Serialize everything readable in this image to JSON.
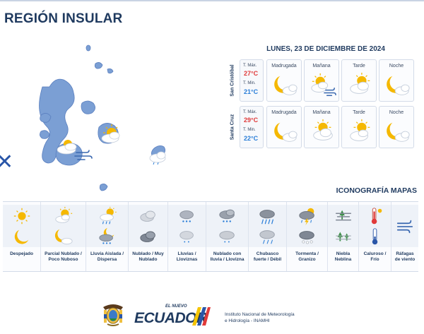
{
  "header": {
    "title": "REGIÓN INSULAR"
  },
  "forecast": {
    "date": "LUNES, 23 DE DICIEMBRE DE 2024",
    "temp_max_label": "T. Máx.",
    "temp_min_label": "T. Min.",
    "islands": [
      {
        "name": "San Cristóbal",
        "t_max": "27°C",
        "t_min": "21°C",
        "periods": [
          {
            "label": "Madrugada",
            "icon": "moon-cloud-icon"
          },
          {
            "label": "Mañana",
            "icon": "sun-cloud-wind-icon"
          },
          {
            "label": "Tarde",
            "icon": "sun-cloud-icon"
          },
          {
            "label": "Noche",
            "icon": "moon-cloud-icon"
          }
        ]
      },
      {
        "name": "Santa Cruz",
        "t_max": "29°C",
        "t_min": "22°C",
        "periods": [
          {
            "label": "Madrugada",
            "icon": "moon-cloud-icon"
          },
          {
            "label": "Mañana",
            "icon": "sun-cloud-icon"
          },
          {
            "label": "Tarde",
            "icon": "sun-cloud-icon"
          },
          {
            "label": "Noche",
            "icon": "moon-cloud-icon"
          }
        ]
      }
    ]
  },
  "legend": {
    "title": "ICONOGRAFÍA MAPAS",
    "items": [
      {
        "label": "Despejado",
        "icons": [
          "sun-icon",
          "moon-icon"
        ]
      },
      {
        "label": "Parcial Nublado / Poco Nuboso",
        "icons": [
          "sun-cloud-icon",
          "moon-cloud-icon"
        ]
      },
      {
        "label": "Lluvia Aislada / Dispersa",
        "icons": [
          "sun-cloud-rain-icon",
          "moon-cloud-rain-icon"
        ]
      },
      {
        "label": "Nublado / Muy Nublado",
        "icons": [
          "cloud-icon",
          "dark-cloud-icon"
        ]
      },
      {
        "label": "Lluvias / Lloviznas",
        "icons": [
          "cloud-rain-icon",
          "cloud-drizzle-icon"
        ]
      },
      {
        "label": "Nublado con lluvia / Llovizna",
        "icons": [
          "cloud-rain-icon",
          "cloud-drizzle-icon"
        ]
      },
      {
        "label": "Chubasco fuerte / Débil",
        "icons": [
          "heavy-shower-icon",
          "light-shower-icon"
        ]
      },
      {
        "label": "Tormenta / Granizo",
        "icons": [
          "thunderstorm-icon",
          "hail-icon"
        ]
      },
      {
        "label": "Niebla Neblina",
        "icons": [
          "fog-icon",
          "mist-icon"
        ]
      },
      {
        "label": "Caluroso / Frío",
        "icons": [
          "hot-thermometer-icon",
          "cold-thermometer-icon"
        ]
      },
      {
        "label": "Ráfagas de viento",
        "icons": [
          "wind-gust-icon"
        ]
      }
    ]
  },
  "footer": {
    "brand_small": "EL NUEVO",
    "brand": "ECUADOR",
    "institute_line1": "Instituto Nacional de Meteorología",
    "institute_line2": "e Hidrología - INAMHI"
  },
  "colors": {
    "title": "#1f3a5f",
    "temp_max": "#e03a3a",
    "temp_min": "#2a7ed8",
    "map_land": "#7b9fd4",
    "sun": "#f5b800"
  }
}
